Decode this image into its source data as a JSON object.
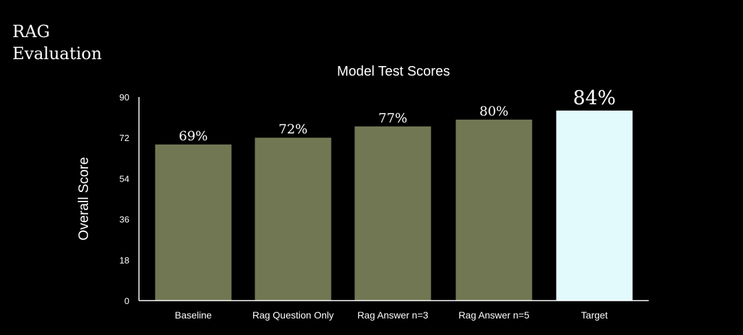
{
  "slide": {
    "title_line1": "RAG",
    "title_line2": "Evaluation"
  },
  "chart_data": {
    "type": "bar",
    "title": "Model Test Scores",
    "ylabel": "Overall Score",
    "xlabel": "",
    "ylim": [
      0,
      90
    ],
    "yticks": [
      0,
      18,
      36,
      54,
      72,
      90
    ],
    "categories": [
      "Baseline",
      "Rag Question Only",
      "Rag Answer n=3",
      "Rag Answer n=5",
      "Target"
    ],
    "values": [
      69,
      72,
      77,
      80,
      84
    ],
    "labels": [
      "69%",
      "72%",
      "77%",
      "80%",
      "84%"
    ],
    "colors": [
      "#727753",
      "#727753",
      "#727753",
      "#727753",
      "#e3fafd"
    ],
    "grid": false,
    "legend": "none"
  }
}
